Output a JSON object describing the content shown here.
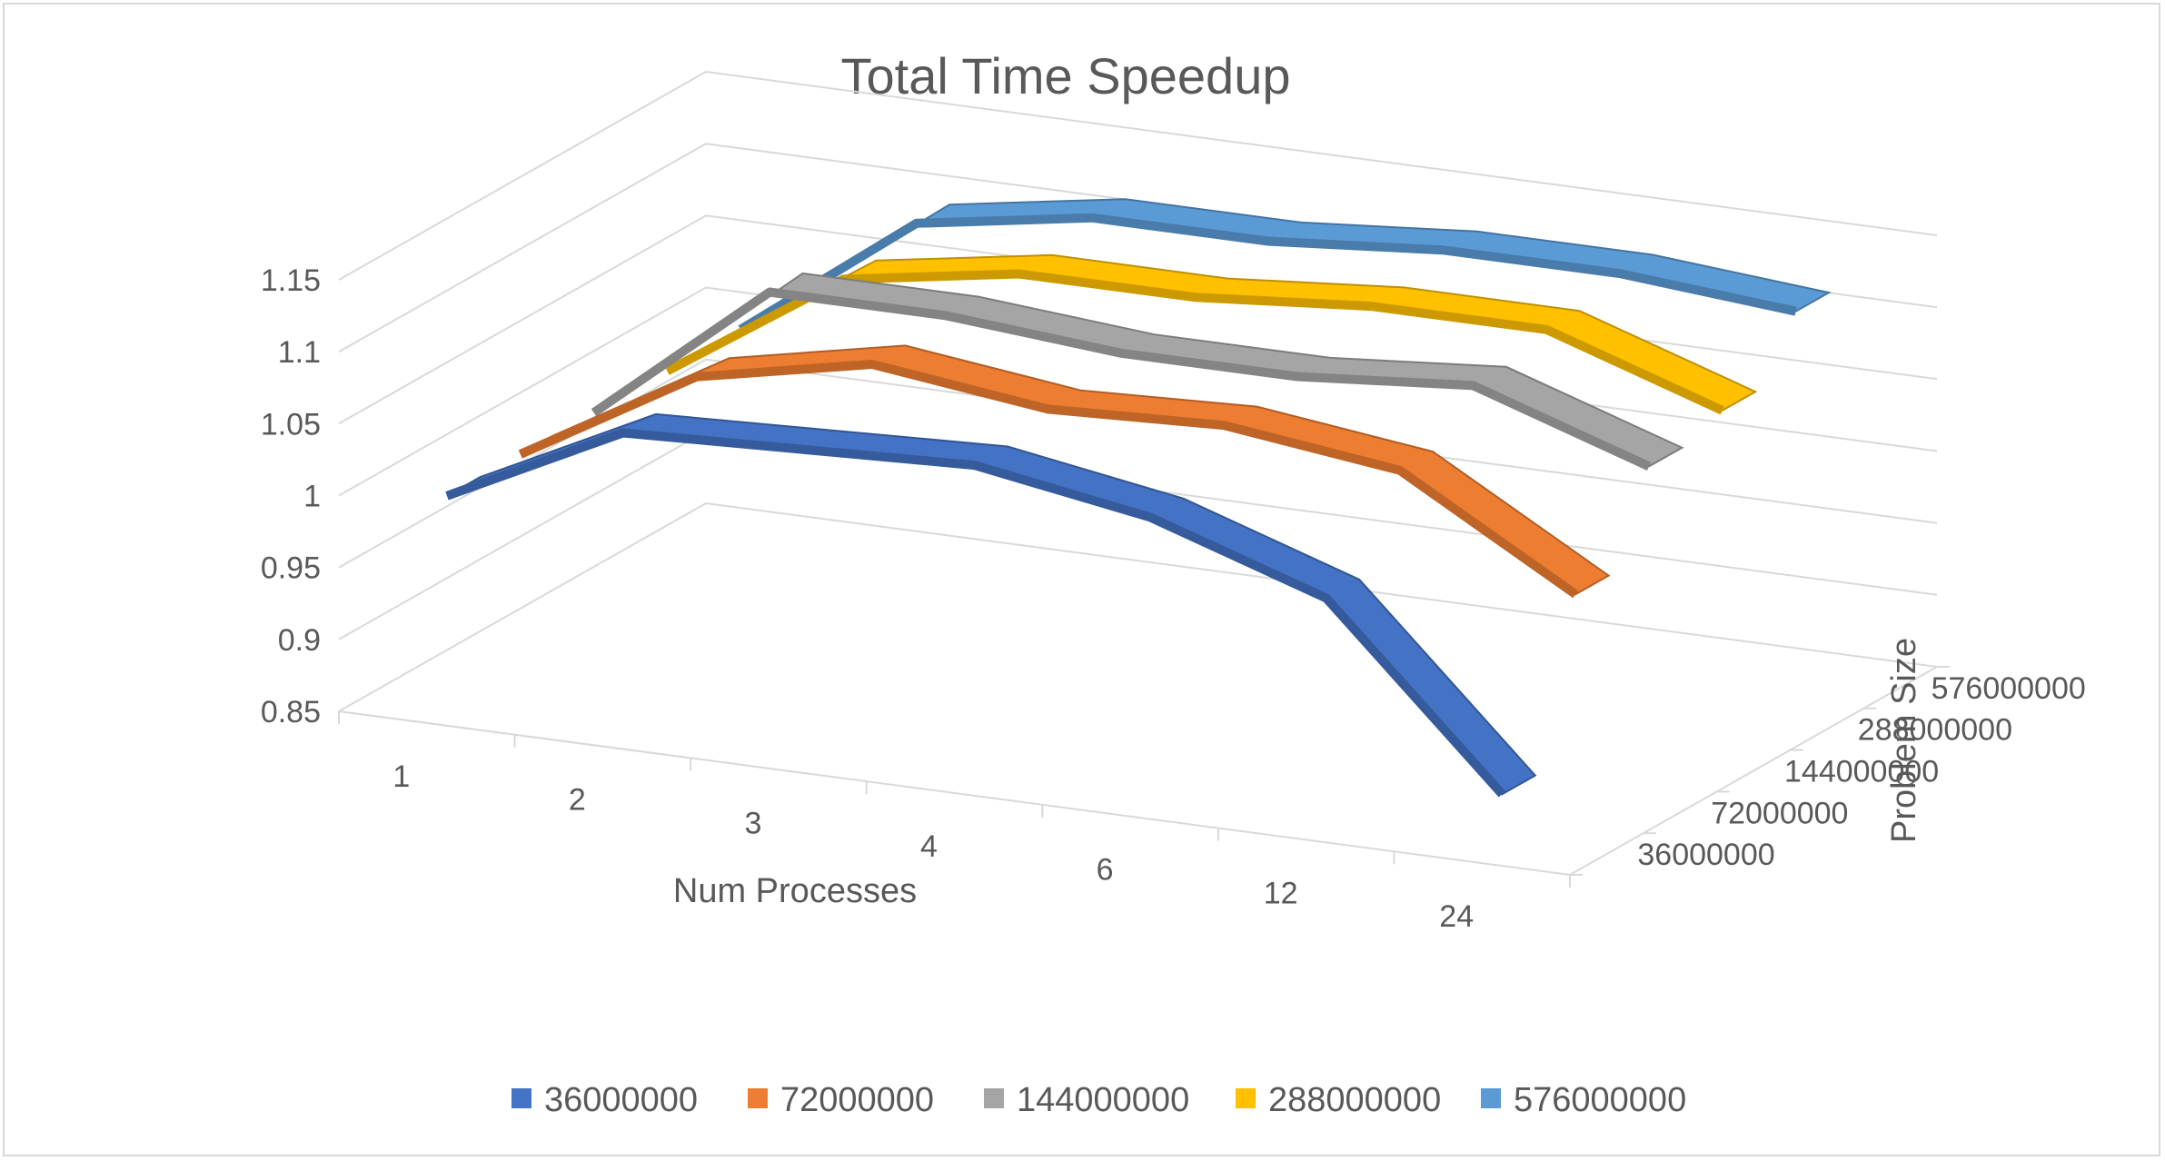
{
  "chart_data": {
    "type": "line",
    "title": "Total Time Speedup",
    "xlabel": "Num Processes",
    "ylabel": "",
    "zlabel": "Problem Size",
    "categories": [
      "1",
      "2",
      "3",
      "4",
      "6",
      "12",
      "24"
    ],
    "depth_categories": [
      "36000000",
      "72000000",
      "144000000",
      "288000000",
      "576000000"
    ],
    "yticks": [
      "0.85",
      "0.9",
      "0.95",
      "1",
      "1.05",
      "1.1",
      "1.15"
    ],
    "ylim": [
      0.85,
      1.15
    ],
    "grid": true,
    "legend_position": "bottom",
    "series": [
      {
        "name": "36000000",
        "color": "#4472C4",
        "values": [
          1.0,
          1.06,
          1.065,
          1.07,
          1.05,
          1.01,
          0.89
        ]
      },
      {
        "name": "72000000",
        "color": "#ED7D31",
        "values": [
          1.0,
          1.07,
          1.095,
          1.08,
          1.085,
          1.07,
          1.0
        ]
      },
      {
        "name": "144000000",
        "color": "#A5A5A5",
        "values": [
          1.0,
          1.1,
          1.1,
          1.09,
          1.09,
          1.1,
          1.06
        ]
      },
      {
        "name": "288000000",
        "color": "#FFC000",
        "values": [
          1.0,
          1.08,
          1.1,
          1.1,
          1.11,
          1.11,
          1.07
        ]
      },
      {
        "name": "576000000",
        "color": "#5B9BD5",
        "values": [
          1.0,
          1.09,
          1.11,
          1.11,
          1.12,
          1.12,
          1.11
        ]
      }
    ]
  }
}
